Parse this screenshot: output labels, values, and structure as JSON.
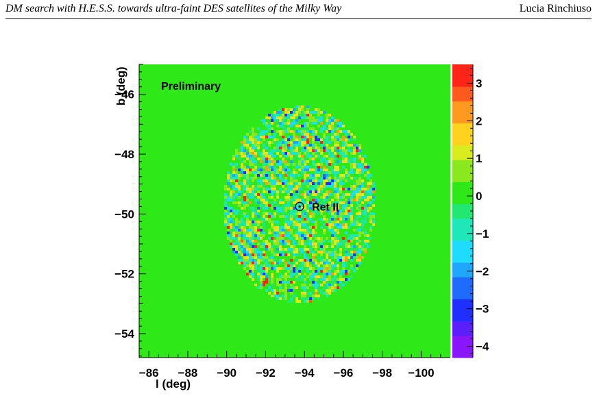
{
  "header": {
    "title": "DM search with H.E.S.S. towards ultra-faint DES satellites of the Milky Way",
    "author": "Lucia Rinchiuso"
  },
  "chart_data": {
    "type": "heatmap",
    "title": "",
    "xlabel": "l (deg)",
    "ylabel": "b (deg)",
    "xlim": [
      -85.5,
      -101.5
    ],
    "ylim": [
      -54.8,
      -45.0
    ],
    "x_ticks": [
      -86,
      -88,
      -90,
      -92,
      -94,
      -96,
      -98,
      -100
    ],
    "x_tick_labels": [
      "−86",
      "−88",
      "−90",
      "−92",
      "−94",
      "−96",
      "−98",
      "−100"
    ],
    "y_ticks": [
      -46,
      -48,
      -50,
      -52,
      -54
    ],
    "y_tick_labels": [
      "−46",
      "−48",
      "−50",
      "−52",
      "−54"
    ],
    "colorbar": {
      "range": [
        -4.3,
        3.5
      ],
      "ticks": [
        3,
        2,
        1,
        0,
        -1,
        -2,
        -3,
        -4
      ],
      "tick_labels": [
        "3",
        "2",
        "1",
        "0",
        "−1",
        "−2",
        "−3",
        "−4"
      ]
    },
    "background_value": 0,
    "field_of_view": {
      "center_l": -93.75,
      "center_b": -49.7,
      "radius_l_deg": 3.9,
      "radius_b_deg": 3.3,
      "description": "circular region of fluctuating significance values"
    },
    "annotations": [
      {
        "text": "Preliminary"
      },
      {
        "text": "Ret II",
        "l": -93.75,
        "b": -49.75,
        "marker": "circle"
      }
    ],
    "colors": {
      "background": "#2ee818",
      "palette": [
        "#8a16ff",
        "#5b1fff",
        "#1f2fff",
        "#1f6bff",
        "#1fa7ff",
        "#1fdcff",
        "#1fe8b8",
        "#20e870",
        "#2ee818",
        "#8ce81e",
        "#d8ec1e",
        "#ffd21e",
        "#ff9a1e",
        "#ff5a1e",
        "#ff2418"
      ]
    }
  }
}
